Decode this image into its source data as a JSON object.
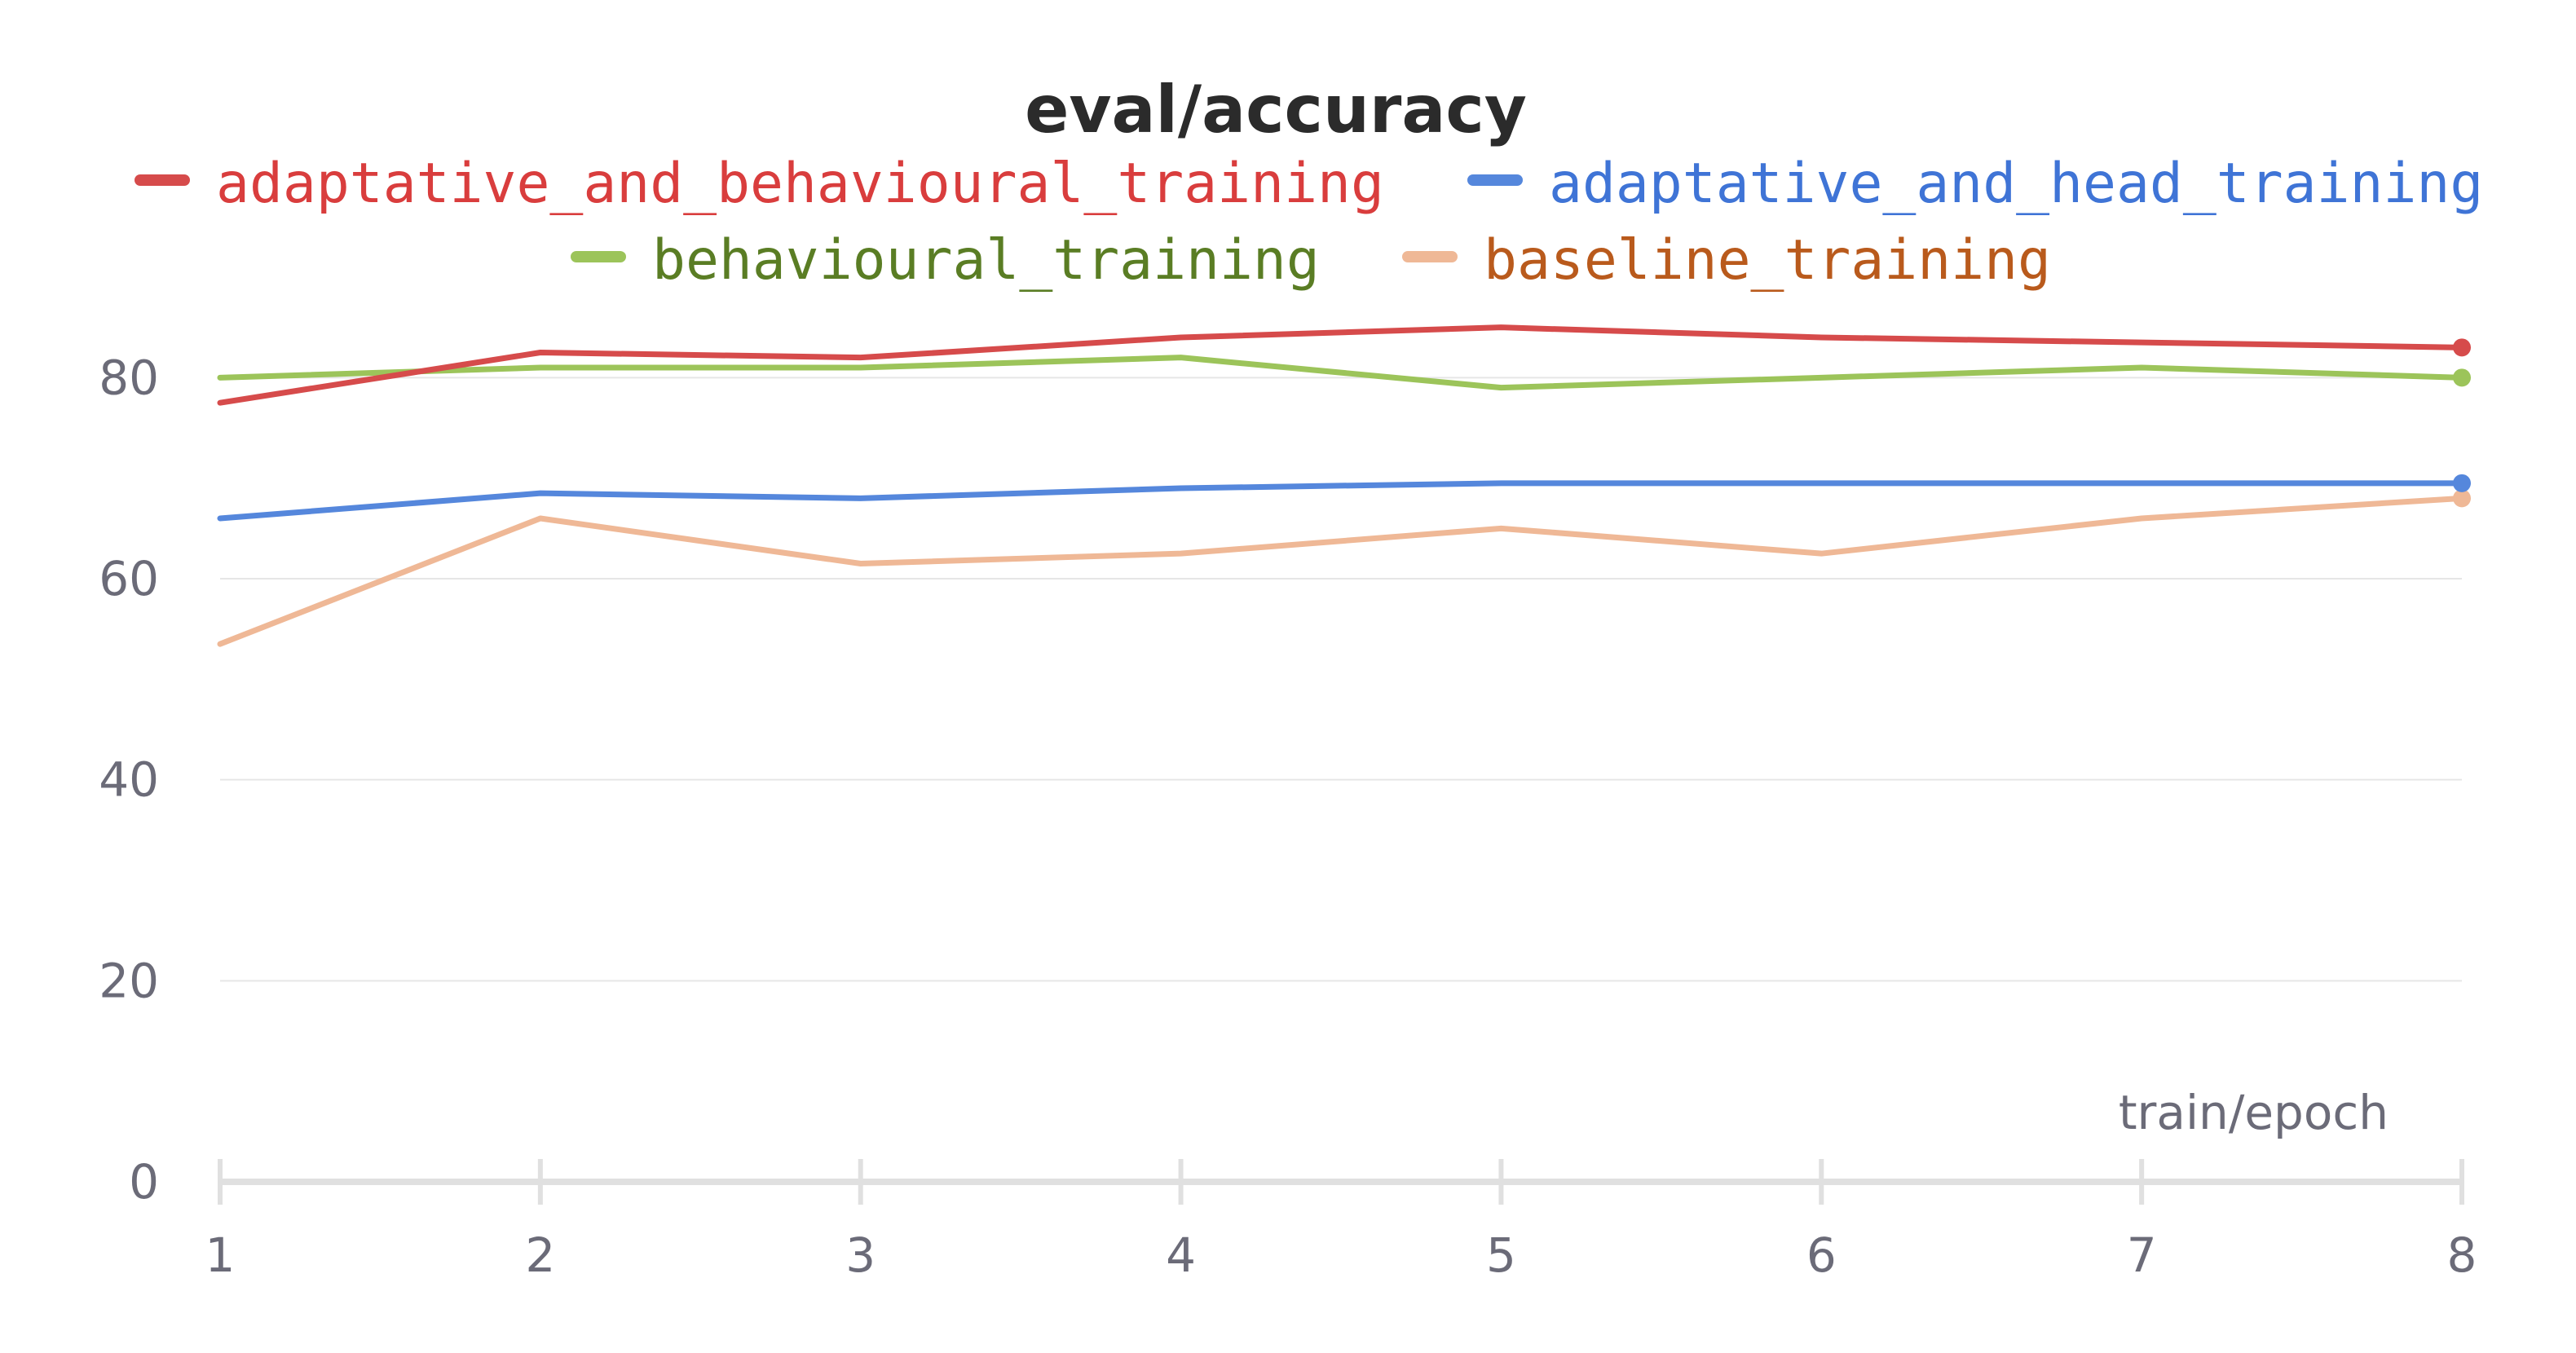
{
  "chart_data": {
    "type": "line",
    "title": "eval/accuracy",
    "xlabel": "train/epoch",
    "ylabel": "",
    "x": [
      1,
      2,
      3,
      4,
      5,
      6,
      7,
      8
    ],
    "xlim": [
      1,
      8
    ],
    "ylim": [
      0,
      90
    ],
    "yticks": [
      0,
      20,
      40,
      60,
      80
    ],
    "grid": true,
    "legend_position": "top",
    "series": [
      {
        "name": "adaptative_and_behavioural_training",
        "color": "#d64b4b",
        "label_color": "#d93d3d",
        "values": [
          77.5,
          82.5,
          82.0,
          84.0,
          85.0,
          84.0,
          83.5,
          83.0
        ]
      },
      {
        "name": "adaptative_and_head_training",
        "color": "#5587dc",
        "label_color": "#3f74d6",
        "values": [
          66.0,
          68.5,
          68.0,
          69.0,
          69.5,
          69.5,
          69.5,
          69.5
        ]
      },
      {
        "name": "behavioural_training",
        "color": "#9cc45a",
        "label_color": "#5a7d24",
        "values": [
          80.0,
          81.0,
          81.0,
          82.0,
          79.0,
          80.0,
          81.0,
          80.0
        ]
      },
      {
        "name": "baseline_training",
        "color": "#efb896",
        "label_color": "#b95a1c",
        "values": [
          53.5,
          66.0,
          61.5,
          62.5,
          65.0,
          62.5,
          66.0,
          68.0
        ]
      }
    ]
  }
}
